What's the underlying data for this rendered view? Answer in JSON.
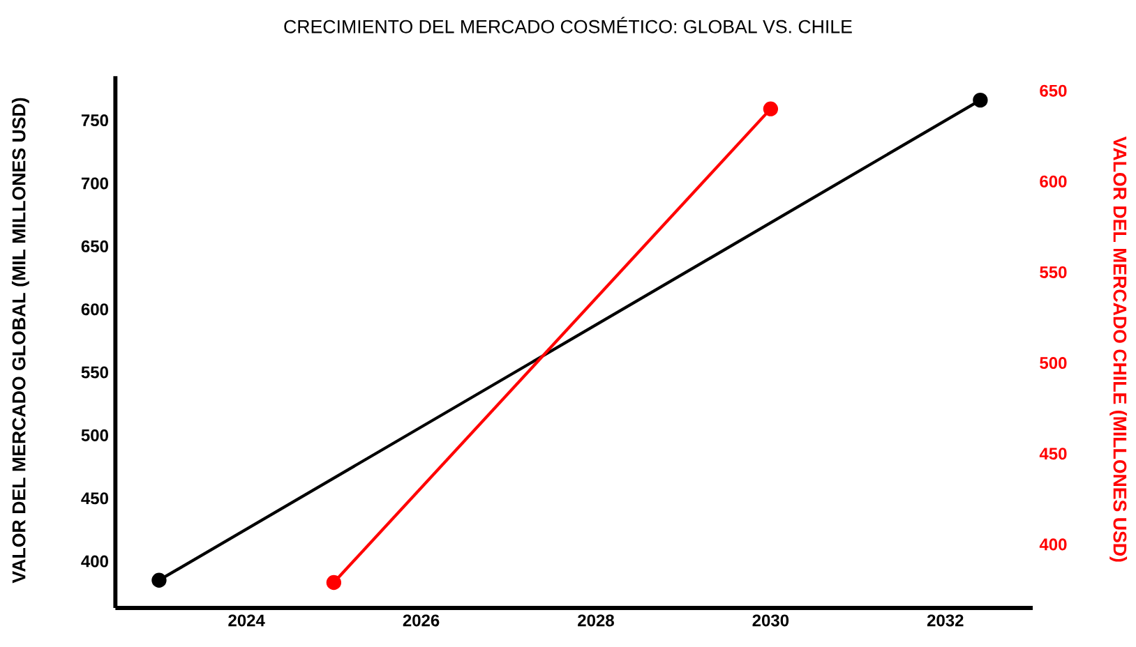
{
  "chart_data": {
    "type": "line",
    "title": "CRECIMIENTO DEL MERCADO COSMÉTICO: GLOBAL VS. CHILE",
    "ylabel": "VALOR DEL MERCADO GLOBAL (MIL MILLONES USD)",
    "y2label": "VALOR DEL MERCADO CHILE (MILLONES USD)",
    "marker": "circle",
    "xlim": [
      2022.5,
      2033
    ],
    "xticks": [
      2024,
      2026,
      2028,
      2030,
      2032
    ],
    "ylim": [
      363,
      785
    ],
    "yticks": [
      400,
      450,
      500,
      550,
      600,
      650,
      700,
      750
    ],
    "y2lim": [
      365,
      658
    ],
    "y2ticks": [
      400,
      450,
      500,
      550,
      600,
      650
    ],
    "series": [
      {
        "color": "#000000",
        "x": [
          2023,
          2032.4
        ],
        "values": [
          385,
          766
        ]
      },
      {
        "color": "#ff0000",
        "axis": "y2",
        "x": [
          2025,
          2030
        ],
        "values": [
          379,
          640
        ]
      }
    ]
  }
}
